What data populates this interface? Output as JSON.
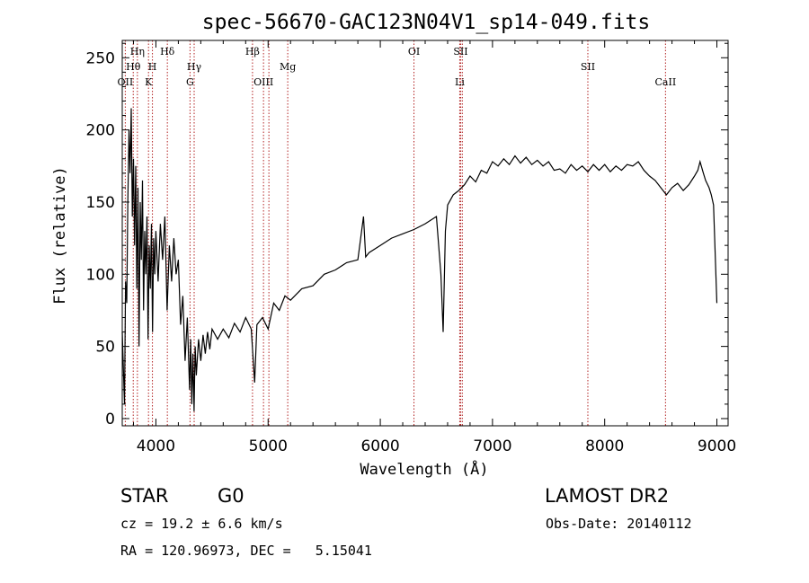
{
  "chart_data": {
    "type": "line",
    "title": "spec-56670-GAC123N04V1_sp14-049.fits",
    "xlabel": "Wavelength (Å)",
    "ylabel": "Flux (relative)",
    "xlim": [
      3700,
      9100
    ],
    "ylim": [
      -5,
      262
    ],
    "xticks": [
      4000,
      5000,
      6000,
      7000,
      8000,
      9000
    ],
    "yticks": [
      0,
      50,
      100,
      150,
      200,
      250
    ],
    "grid": false,
    "series_color": "#000000",
    "line_marker_color": "#b22222",
    "spectral_lines": [
      {
        "label": "OII",
        "wavelength": 3727,
        "row": 3
      },
      {
        "label": "Hθ",
        "wavelength": 3798,
        "row": 2
      },
      {
        "label": "Hη",
        "wavelength": 3835,
        "row": 1
      },
      {
        "label": "K",
        "wavelength": 3934,
        "row": 3
      },
      {
        "label": "H",
        "wavelength": 3969,
        "row": 2
      },
      {
        "label": "Hδ",
        "wavelength": 4102,
        "row": 1
      },
      {
        "label": "G",
        "wavelength": 4304,
        "row": 3
      },
      {
        "label": "Hγ",
        "wavelength": 4341,
        "row": 2
      },
      {
        "label": "Hβ",
        "wavelength": 4861,
        "row": 1
      },
      {
        "label": "OIII",
        "wavelength": 4959,
        "row": 3
      },
      {
        "label": "OIII",
        "wavelength": 5007,
        "row": 3,
        "hidden_label": true
      },
      {
        "label": "Mg",
        "wavelength": 5175,
        "row": 2
      },
      {
        "label": "OI",
        "wavelength": 6300,
        "row": 1
      },
      {
        "label": "Li",
        "wavelength": 6708,
        "row": 3
      },
      {
        "label": "SII",
        "wavelength": 6716,
        "row": 1
      },
      {
        "label": "SII",
        "wavelength": 6731,
        "row": 1,
        "hidden_label": true
      },
      {
        "label": "SII",
        "wavelength": 7850,
        "row": 2
      },
      {
        "label": "CaII",
        "wavelength": 8542,
        "row": 3
      }
    ],
    "series": [
      {
        "points": [
          [
            3700,
            60
          ],
          [
            3720,
            10
          ],
          [
            3730,
            95
          ],
          [
            3740,
            80
          ],
          [
            3750,
            150
          ],
          [
            3760,
            200
          ],
          [
            3770,
            170
          ],
          [
            3780,
            215
          ],
          [
            3790,
            140
          ],
          [
            3800,
            180
          ],
          [
            3810,
            120
          ],
          [
            3820,
            175
          ],
          [
            3830,
            90
          ],
          [
            3840,
            160
          ],
          [
            3850,
            50
          ],
          [
            3860,
            150
          ],
          [
            3870,
            110
          ],
          [
            3880,
            165
          ],
          [
            3890,
            75
          ],
          [
            3900,
            130
          ],
          [
            3910,
            100
          ],
          [
            3920,
            140
          ],
          [
            3930,
            55
          ],
          [
            3940,
            120
          ],
          [
            3950,
            90
          ],
          [
            3960,
            135
          ],
          [
            3970,
            60
          ],
          [
            3980,
            125
          ],
          [
            3990,
            100
          ],
          [
            4000,
            130
          ],
          [
            4020,
            95
          ],
          [
            4040,
            135
          ],
          [
            4060,
            110
          ],
          [
            4080,
            140
          ],
          [
            4100,
            75
          ],
          [
            4120,
            120
          ],
          [
            4140,
            95
          ],
          [
            4160,
            125
          ],
          [
            4180,
            100
          ],
          [
            4200,
            110
          ],
          [
            4220,
            65
          ],
          [
            4240,
            85
          ],
          [
            4260,
            40
          ],
          [
            4280,
            70
          ],
          [
            4300,
            20
          ],
          [
            4310,
            55
          ],
          [
            4320,
            10
          ],
          [
            4330,
            45
          ],
          [
            4340,
            5
          ],
          [
            4350,
            50
          ],
          [
            4360,
            30
          ],
          [
            4380,
            55
          ],
          [
            4400,
            40
          ],
          [
            4420,
            58
          ],
          [
            4440,
            45
          ],
          [
            4460,
            60
          ],
          [
            4480,
            48
          ],
          [
            4500,
            62
          ],
          [
            4550,
            55
          ],
          [
            4600,
            62
          ],
          [
            4650,
            56
          ],
          [
            4700,
            66
          ],
          [
            4750,
            60
          ],
          [
            4800,
            70
          ],
          [
            4850,
            62
          ],
          [
            4880,
            25
          ],
          [
            4900,
            65
          ],
          [
            4950,
            70
          ],
          [
            5000,
            62
          ],
          [
            5050,
            80
          ],
          [
            5100,
            75
          ],
          [
            5150,
            85
          ],
          [
            5200,
            82
          ],
          [
            5300,
            90
          ],
          [
            5400,
            92
          ],
          [
            5500,
            100
          ],
          [
            5600,
            103
          ],
          [
            5700,
            108
          ],
          [
            5800,
            110
          ],
          [
            5850,
            140
          ],
          [
            5870,
            112
          ],
          [
            5900,
            115
          ],
          [
            6000,
            120
          ],
          [
            6100,
            125
          ],
          [
            6200,
            128
          ],
          [
            6300,
            131
          ],
          [
            6400,
            135
          ],
          [
            6500,
            140
          ],
          [
            6540,
            100
          ],
          [
            6560,
            60
          ],
          [
            6580,
            130
          ],
          [
            6600,
            148
          ],
          [
            6650,
            155
          ],
          [
            6700,
            158
          ],
          [
            6750,
            162
          ],
          [
            6800,
            168
          ],
          [
            6850,
            164
          ],
          [
            6900,
            172
          ],
          [
            6950,
            170
          ],
          [
            7000,
            178
          ],
          [
            7050,
            175
          ],
          [
            7100,
            180
          ],
          [
            7150,
            176
          ],
          [
            7200,
            182
          ],
          [
            7250,
            177
          ],
          [
            7300,
            181
          ],
          [
            7350,
            176
          ],
          [
            7400,
            179
          ],
          [
            7450,
            175
          ],
          [
            7500,
            178
          ],
          [
            7550,
            172
          ],
          [
            7600,
            173
          ],
          [
            7650,
            170
          ],
          [
            7700,
            176
          ],
          [
            7750,
            172
          ],
          [
            7800,
            175
          ],
          [
            7850,
            171
          ],
          [
            7900,
            176
          ],
          [
            7950,
            172
          ],
          [
            8000,
            176
          ],
          [
            8050,
            171
          ],
          [
            8100,
            175
          ],
          [
            8150,
            172
          ],
          [
            8200,
            176
          ],
          [
            8250,
            175
          ],
          [
            8300,
            178
          ],
          [
            8350,
            172
          ],
          [
            8400,
            168
          ],
          [
            8450,
            165
          ],
          [
            8500,
            160
          ],
          [
            8550,
            155
          ],
          [
            8600,
            160
          ],
          [
            8650,
            163
          ],
          [
            8700,
            158
          ],
          [
            8750,
            162
          ],
          [
            8800,
            168
          ],
          [
            8830,
            172
          ],
          [
            8850,
            178
          ],
          [
            8880,
            170
          ],
          [
            8900,
            165
          ],
          [
            8930,
            160
          ],
          [
            8950,
            155
          ],
          [
            8970,
            148
          ],
          [
            9000,
            80
          ]
        ]
      }
    ]
  },
  "footer": {
    "object_class": "STAR",
    "subclass": "G0",
    "redshift_text": "cz = 19.2 ± 6.6 km/s",
    "coords_text": "RA = 120.96973, DEC =   5.15041",
    "survey": "LAMOST DR2",
    "obs_date": "Obs-Date: 20140112"
  }
}
